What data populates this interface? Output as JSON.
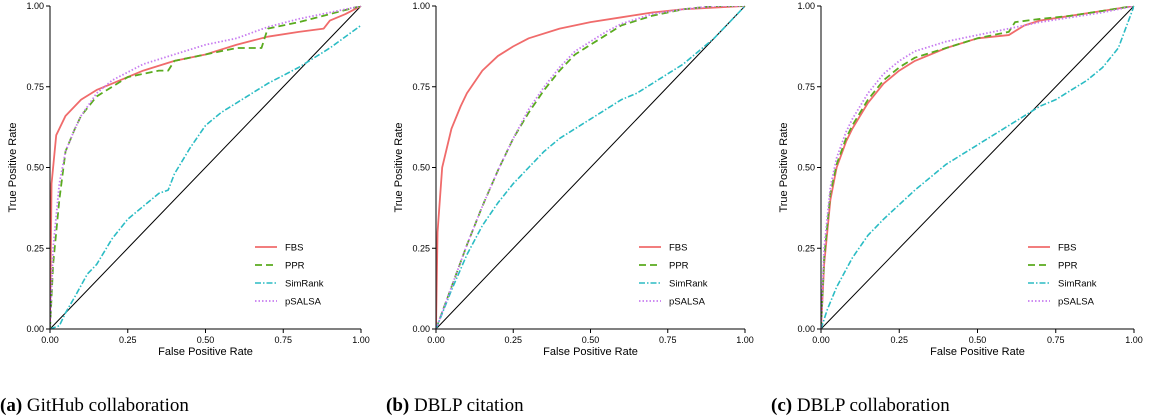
{
  "legend_labels": [
    "FBS",
    "PPR",
    "SimRank",
    "pSALSA"
  ],
  "colors": {
    "FBS": "#f06b6b",
    "PPR": "#5aab1f",
    "SimRank": "#2bbcc4",
    "pSALSA": "#c77cf0"
  },
  "chart_data": [
    {
      "type": "line",
      "caption_letter": "(a)",
      "caption_text": " GitHub collaboration",
      "xlabel": "False Positive Rate",
      "ylabel": "True Positive Rate",
      "xlim": [
        0,
        1
      ],
      "ylim": [
        0,
        1
      ],
      "xticks": [
        0,
        0.25,
        0.5,
        0.75,
        1
      ],
      "xtick_labels": [
        "0.00",
        "0.25",
        "0.50",
        "0.75",
        "1.00"
      ],
      "yticks": [
        0,
        0.25,
        0.5,
        0.75,
        1
      ],
      "ytick_labels": [
        "0.00",
        "0.25",
        "0.50",
        "0.75",
        "1.00"
      ],
      "legend_position": "bottom-right",
      "diagonal": true,
      "series": [
        {
          "name": "FBS",
          "x": [
            0,
            0.005,
            0.02,
            0.05,
            0.1,
            0.15,
            0.2,
            0.3,
            0.4,
            0.5,
            0.6,
            0.7,
            0.8,
            0.88,
            0.9,
            0.95,
            1.0
          ],
          "y": [
            0,
            0.45,
            0.6,
            0.66,
            0.71,
            0.74,
            0.76,
            0.8,
            0.83,
            0.85,
            0.88,
            0.905,
            0.92,
            0.93,
            0.955,
            0.975,
            1.0
          ]
        },
        {
          "name": "PPR",
          "x": [
            0,
            0.01,
            0.03,
            0.05,
            0.08,
            0.1,
            0.15,
            0.2,
            0.25,
            0.3,
            0.35,
            0.38,
            0.4,
            0.5,
            0.6,
            0.68,
            0.7,
            0.8,
            0.9,
            1.0
          ],
          "y": [
            0,
            0.2,
            0.4,
            0.55,
            0.62,
            0.66,
            0.72,
            0.75,
            0.78,
            0.79,
            0.8,
            0.8,
            0.83,
            0.85,
            0.87,
            0.87,
            0.93,
            0.95,
            0.975,
            1.0
          ]
        },
        {
          "name": "SimRank",
          "x": [
            0,
            0.03,
            0.05,
            0.08,
            0.12,
            0.15,
            0.2,
            0.25,
            0.3,
            0.35,
            0.38,
            0.4,
            0.45,
            0.5,
            0.55,
            0.6,
            0.7,
            0.8,
            0.9,
            1.0
          ],
          "y": [
            0,
            0.01,
            0.05,
            0.1,
            0.17,
            0.2,
            0.28,
            0.34,
            0.38,
            0.42,
            0.43,
            0.48,
            0.56,
            0.63,
            0.67,
            0.7,
            0.76,
            0.81,
            0.87,
            0.94
          ]
        },
        {
          "name": "pSALSA",
          "x": [
            0,
            0.01,
            0.03,
            0.05,
            0.08,
            0.1,
            0.15,
            0.2,
            0.3,
            0.4,
            0.5,
            0.6,
            0.7,
            0.8,
            0.9,
            1.0
          ],
          "y": [
            0,
            0.25,
            0.45,
            0.55,
            0.62,
            0.66,
            0.73,
            0.77,
            0.82,
            0.85,
            0.88,
            0.9,
            0.935,
            0.96,
            0.98,
            1.0
          ]
        }
      ]
    },
    {
      "type": "line",
      "caption_letter": "(b)",
      "caption_text": " DBLP citation",
      "xlabel": "False Positive Rate",
      "ylabel": "True Positive Rate",
      "xlim": [
        0,
        1
      ],
      "ylim": [
        0,
        1
      ],
      "xticks": [
        0,
        0.25,
        0.5,
        0.75,
        1
      ],
      "xtick_labels": [
        "0.00",
        "0.25",
        "0.50",
        "0.75",
        "1.00"
      ],
      "yticks": [
        0,
        0.25,
        0.5,
        0.75,
        1
      ],
      "ytick_labels": [
        "0.00",
        "0.25",
        "0.50",
        "0.75",
        "1.00"
      ],
      "legend_position": "bottom-right",
      "diagonal": true,
      "series": [
        {
          "name": "FBS",
          "x": [
            0,
            0.005,
            0.02,
            0.05,
            0.08,
            0.1,
            0.15,
            0.2,
            0.25,
            0.3,
            0.4,
            0.5,
            0.6,
            0.7,
            0.8,
            0.9,
            1.0
          ],
          "y": [
            0,
            0.3,
            0.5,
            0.62,
            0.69,
            0.73,
            0.8,
            0.845,
            0.875,
            0.9,
            0.93,
            0.95,
            0.965,
            0.98,
            0.99,
            0.995,
            1.0
          ]
        },
        {
          "name": "PPR",
          "x": [
            0,
            0.05,
            0.1,
            0.15,
            0.2,
            0.25,
            0.3,
            0.35,
            0.4,
            0.45,
            0.5,
            0.55,
            0.6,
            0.7,
            0.8,
            0.9,
            1.0
          ],
          "y": [
            0,
            0.13,
            0.26,
            0.38,
            0.49,
            0.59,
            0.67,
            0.74,
            0.8,
            0.85,
            0.88,
            0.91,
            0.94,
            0.97,
            0.99,
            1.0,
            1.0
          ]
        },
        {
          "name": "SimRank",
          "x": [
            0,
            0.05,
            0.1,
            0.15,
            0.2,
            0.25,
            0.3,
            0.35,
            0.4,
            0.45,
            0.5,
            0.55,
            0.6,
            0.65,
            0.7,
            0.75,
            0.8,
            0.85,
            0.9,
            0.95,
            1.0
          ],
          "y": [
            0,
            0.12,
            0.23,
            0.32,
            0.39,
            0.45,
            0.5,
            0.55,
            0.59,
            0.62,
            0.65,
            0.68,
            0.71,
            0.73,
            0.76,
            0.79,
            0.82,
            0.86,
            0.9,
            0.95,
            1.0
          ]
        },
        {
          "name": "pSALSA",
          "x": [
            0,
            0.05,
            0.1,
            0.15,
            0.2,
            0.25,
            0.3,
            0.35,
            0.4,
            0.45,
            0.5,
            0.55,
            0.6,
            0.7,
            0.8,
            0.9,
            1.0
          ],
          "y": [
            0,
            0.13,
            0.26,
            0.38,
            0.49,
            0.59,
            0.68,
            0.75,
            0.81,
            0.86,
            0.89,
            0.92,
            0.945,
            0.975,
            0.99,
            1.0,
            1.0
          ]
        }
      ]
    },
    {
      "type": "line",
      "caption_letter": "(c)",
      "caption_text": " DBLP collaboration",
      "xlabel": "False Positive Rate",
      "ylabel": "True Positive Rate",
      "xlim": [
        0,
        1
      ],
      "ylim": [
        0,
        1
      ],
      "xticks": [
        0,
        0.25,
        0.5,
        0.75,
        1
      ],
      "xtick_labels": [
        "0.00",
        "0.25",
        "0.50",
        "0.75",
        "1.00"
      ],
      "yticks": [
        0,
        0.25,
        0.5,
        0.75,
        1
      ],
      "ytick_labels": [
        "0.00",
        "0.25",
        "0.50",
        "0.75",
        "1.00"
      ],
      "legend_position": "bottom-right",
      "diagonal": true,
      "series": [
        {
          "name": "FBS",
          "x": [
            0,
            0.01,
            0.03,
            0.05,
            0.08,
            0.1,
            0.15,
            0.2,
            0.25,
            0.3,
            0.4,
            0.5,
            0.6,
            0.65,
            0.7,
            0.8,
            0.9,
            1.0
          ],
          "y": [
            0,
            0.2,
            0.4,
            0.5,
            0.58,
            0.62,
            0.7,
            0.76,
            0.8,
            0.83,
            0.87,
            0.9,
            0.91,
            0.94,
            0.955,
            0.97,
            0.985,
            1.0
          ]
        },
        {
          "name": "PPR",
          "x": [
            0,
            0.01,
            0.03,
            0.05,
            0.08,
            0.1,
            0.15,
            0.2,
            0.25,
            0.3,
            0.4,
            0.5,
            0.6,
            0.62,
            0.7,
            0.8,
            0.9,
            1.0
          ],
          "y": [
            0,
            0.22,
            0.42,
            0.51,
            0.59,
            0.63,
            0.71,
            0.77,
            0.81,
            0.84,
            0.87,
            0.9,
            0.92,
            0.95,
            0.96,
            0.97,
            0.985,
            1.0
          ]
        },
        {
          "name": "SimRank",
          "x": [
            0,
            0.02,
            0.05,
            0.1,
            0.15,
            0.2,
            0.3,
            0.4,
            0.5,
            0.6,
            0.65,
            0.7,
            0.75,
            0.8,
            0.85,
            0.9,
            0.95,
            1.0
          ],
          "y": [
            0,
            0.06,
            0.13,
            0.22,
            0.29,
            0.34,
            0.43,
            0.51,
            0.57,
            0.63,
            0.66,
            0.69,
            0.71,
            0.74,
            0.77,
            0.81,
            0.87,
            1.0
          ]
        },
        {
          "name": "pSALSA",
          "x": [
            0,
            0.01,
            0.03,
            0.05,
            0.08,
            0.1,
            0.15,
            0.2,
            0.25,
            0.3,
            0.4,
            0.5,
            0.6,
            0.7,
            0.8,
            0.9,
            1.0
          ],
          "y": [
            0,
            0.25,
            0.44,
            0.53,
            0.61,
            0.65,
            0.73,
            0.79,
            0.83,
            0.86,
            0.89,
            0.91,
            0.93,
            0.95,
            0.965,
            0.98,
            1.0
          ]
        }
      ]
    }
  ]
}
